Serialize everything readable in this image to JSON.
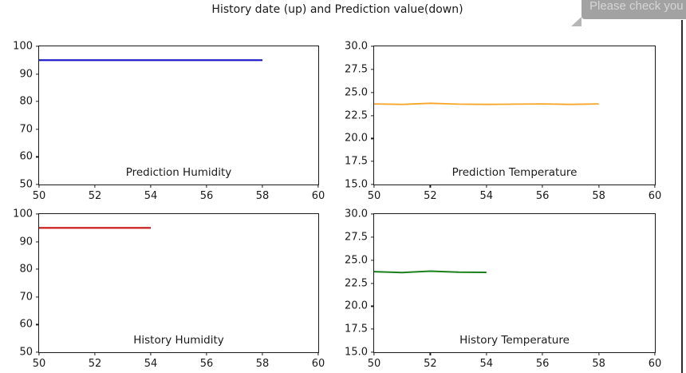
{
  "page": {
    "title": "History date (up) and Prediction value(down)"
  },
  "tooltip": {
    "text": "Please check you",
    "bg_color": "#a2a2a2",
    "text_color": "#d6d6d6"
  },
  "chart_data": [
    {
      "type": "line",
      "name": "prediction-humidity",
      "label": "Prediction Humidity",
      "color": "#1212c8",
      "line_width": 2.2,
      "x": [
        50,
        51,
        52,
        53,
        54,
        55,
        56,
        57,
        58
      ],
      "y": [
        95,
        95,
        95,
        95,
        95,
        95,
        95,
        95,
        95
      ],
      "xlim": [
        50,
        60
      ],
      "ylim": [
        50,
        100
      ],
      "xticks": [
        "50",
        "52",
        "54",
        "56",
        "58",
        "60"
      ],
      "yticks": [
        "50",
        "60",
        "70",
        "80",
        "90",
        "100"
      ],
      "grid": false,
      "legend": "none",
      "label_position": "inside-bottom-center"
    },
    {
      "type": "line",
      "name": "prediction-temperature",
      "label": "Prediction Temperature",
      "color": "#f8a628",
      "line_width": 1.8,
      "x": [
        50,
        51,
        52,
        53,
        54,
        55,
        56,
        57,
        58
      ],
      "y": [
        23.75,
        23.7,
        23.82,
        23.72,
        23.7,
        23.72,
        23.75,
        23.7,
        23.75
      ],
      "xlim": [
        50,
        60
      ],
      "ylim": [
        15.0,
        30.0
      ],
      "xticks": [
        "50",
        "52",
        "54",
        "56",
        "58",
        "60"
      ],
      "yticks": [
        "15.0",
        "17.5",
        "20.0",
        "22.5",
        "25.0",
        "27.5",
        "30.0"
      ],
      "grid": false,
      "legend": "none",
      "label_position": "inside-bottom-center"
    },
    {
      "type": "line",
      "name": "history-humidity",
      "label": "History Humidity",
      "color": "#cc1111",
      "line_width": 2.2,
      "x": [
        50,
        51,
        52,
        53,
        54
      ],
      "y": [
        95,
        95,
        95,
        95,
        95
      ],
      "xlim": [
        50,
        60
      ],
      "ylim": [
        50,
        100
      ],
      "xticks": [
        "50",
        "52",
        "54",
        "56",
        "58",
        "60"
      ],
      "yticks": [
        "50",
        "60",
        "70",
        "80",
        "90",
        "100"
      ],
      "grid": false,
      "legend": "none",
      "label_position": "inside-bottom-center"
    },
    {
      "type": "line",
      "name": "history-temperature",
      "label": "History Temperature",
      "color": "#1a801a",
      "line_width": 2,
      "x": [
        50,
        51,
        52,
        53,
        54
      ],
      "y": [
        23.75,
        23.65,
        23.8,
        23.7,
        23.67
      ],
      "xlim": [
        50,
        60
      ],
      "ylim": [
        15.0,
        30.0
      ],
      "xticks": [
        "50",
        "52",
        "54",
        "56",
        "58",
        "60"
      ],
      "yticks": [
        "15.0",
        "17.5",
        "20.0",
        "22.5",
        "25.0",
        "27.5",
        "30.0"
      ],
      "grid": false,
      "legend": "none",
      "label_position": "inside-bottom-center"
    }
  ]
}
